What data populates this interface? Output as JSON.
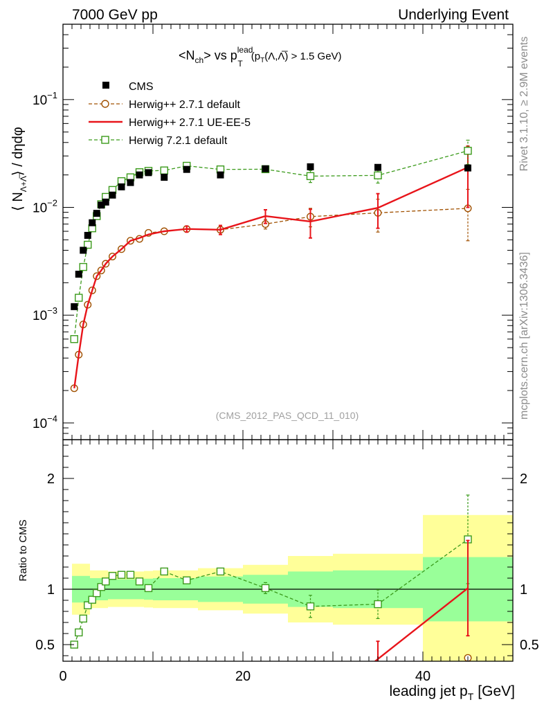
{
  "header": {
    "left": "7000 GeV pp",
    "right": "Underlying Event"
  },
  "side_labels": {
    "rivet": "Rivet 3.1.10, ≥ 2.9M events",
    "mcplots": "mcplots.cern.ch [arXiv:1306.3436]"
  },
  "chart_data": [
    {
      "type": "scatter",
      "title_parts": {
        "nch": "<N",
        "nch_sub": "ch",
        "vs": "> vs p",
        "pt_sup": "lead",
        "pt_sub": "T",
        "cond": "(p",
        "cond_sub": "T",
        "cond_rest": "(Λ,Λ̅) > 1.5 GeV)"
      },
      "watermark": "(CMS_2012_PAS_QCD_11_010)",
      "ylabel": "⟨ NΛ+Λ̅ ⟩ / dηdφ",
      "ylabel_parts": {
        "open": "⟨ N",
        "sub": "Λ+Λ̅",
        "close": "⟩ / dηdφ"
      },
      "yscale": "log",
      "ylim": [
        7e-05,
        0.5
      ],
      "xlim": [
        0,
        50
      ],
      "y_ticks": [
        {
          "value": 0.0001,
          "base": "10",
          "exp": "−4"
        },
        {
          "value": 0.001,
          "base": "10",
          "exp": "−3"
        },
        {
          "value": 0.01,
          "base": "10",
          "exp": "−2"
        },
        {
          "value": 0.1,
          "base": "10",
          "exp": "−1"
        }
      ],
      "legend_position": "top-left",
      "series": [
        {
          "name": "CMS",
          "color": "#000000",
          "marker": "filled-square",
          "x": [
            1.25,
            1.75,
            2.25,
            2.75,
            3.25,
            3.75,
            4.25,
            4.75,
            5.5,
            6.5,
            7.5,
            8.5,
            9.5,
            11.25,
            13.75,
            17.5,
            22.5,
            27.5,
            35.0,
            45.0
          ],
          "y": [
            0.0012,
            0.0024,
            0.004,
            0.0055,
            0.0072,
            0.0088,
            0.0105,
            0.0112,
            0.013,
            0.0155,
            0.017,
            0.02,
            0.021,
            0.019,
            0.0225,
            0.02,
            0.0228,
            0.0238,
            0.0235,
            0.0232
          ]
        },
        {
          "name": "Herwig++ 2.7.1 default",
          "color": "#a05000",
          "marker": "open-circle",
          "line": "dashed",
          "x": [
            1.25,
            1.75,
            2.25,
            2.75,
            3.25,
            3.75,
            4.25,
            4.75,
            5.5,
            6.5,
            7.5,
            8.5,
            9.5,
            11.25,
            13.75,
            17.5,
            22.5,
            27.5,
            35.0,
            45.0
          ],
          "y": [
            0.00021,
            0.00043,
            0.00082,
            0.00125,
            0.0017,
            0.0023,
            0.0026,
            0.003,
            0.0035,
            0.0041,
            0.0049,
            0.0051,
            0.0058,
            0.006,
            0.0063,
            0.0062,
            0.007,
            0.0082,
            0.0089,
            0.0098
          ],
          "yerr": [
            0,
            0,
            0,
            0,
            0,
            0,
            0,
            0,
            0,
            0,
            0,
            0,
            0,
            0,
            0,
            0,
            0.0007,
            0.0016,
            0.003,
            0.0049
          ]
        },
        {
          "name": "Herwig++ 2.7.1 UE-EE-5",
          "color": "#e8141a",
          "marker": "none",
          "line": "solid",
          "x": [
            1.25,
            1.75,
            2.25,
            2.75,
            3.25,
            3.75,
            4.25,
            4.75,
            5.5,
            6.5,
            7.5,
            8.5,
            9.5,
            11.25,
            13.75,
            17.5,
            22.5,
            27.5,
            35.0,
            45.0
          ],
          "y": [
            0.00021,
            0.00043,
            0.00082,
            0.00125,
            0.0017,
            0.0023,
            0.0026,
            0.003,
            0.0035,
            0.0041,
            0.0049,
            0.0052,
            0.0056,
            0.006,
            0.0063,
            0.0062,
            0.0083,
            0.0074,
            0.0099,
            0.0235
          ],
          "yerr": [
            0,
            0,
            0,
            0,
            0,
            0,
            0,
            0,
            0,
            0,
            0,
            0,
            0,
            0,
            0.0004,
            0.0006,
            0.0012,
            0.0022,
            0.0035,
            0.0135
          ]
        },
        {
          "name": "Herwig 7.2.1 default",
          "color": "#3a9a1a",
          "marker": "open-square",
          "line": "dashed",
          "x": [
            1.25,
            1.75,
            2.25,
            2.75,
            3.25,
            3.75,
            4.25,
            4.75,
            5.5,
            6.5,
            7.5,
            8.5,
            9.5,
            11.25,
            13.75,
            17.5,
            22.5,
            27.5,
            35.0,
            45.0
          ],
          "y": [
            0.0006,
            0.00145,
            0.0028,
            0.0045,
            0.0064,
            0.0083,
            0.0107,
            0.0125,
            0.0145,
            0.0175,
            0.019,
            0.0212,
            0.0218,
            0.022,
            0.0243,
            0.0225,
            0.0226,
            0.0195,
            0.0198,
            0.0335
          ],
          "yerr": [
            0,
            0,
            0,
            0,
            0,
            0,
            0,
            0,
            0,
            0,
            0,
            0,
            0,
            0,
            0,
            0,
            0.0012,
            0.0025,
            0.003,
            0.0085
          ]
        }
      ]
    },
    {
      "type": "scatter",
      "ylabel": "Ratio to CMS",
      "xlabel": "leading jet p",
      "xlabel_sub": "T",
      "xlabel_unit": "[GeV]",
      "xlim": [
        0,
        50
      ],
      "ylim": [
        0.35,
        2.35
      ],
      "x_ticks": [
        "0",
        "20",
        "40"
      ],
      "x_tick_values": [
        0,
        20,
        40
      ],
      "y_ticks": [
        "0.5",
        "1",
        "2"
      ],
      "y_tick_values": [
        0.5,
        1,
        2
      ],
      "reference_line": 1,
      "uncertainty_bands": {
        "bins": [
          [
            1,
            3
          ],
          [
            3,
            5
          ],
          [
            5,
            7
          ],
          [
            7,
            9
          ],
          [
            9,
            10
          ],
          [
            10,
            12.5
          ],
          [
            12.5,
            15
          ],
          [
            15,
            20
          ],
          [
            20,
            25
          ],
          [
            25,
            30
          ],
          [
            30,
            40
          ],
          [
            40,
            50
          ]
        ],
        "stat_half_width": [
          0.12,
          0.1,
          0.09,
          0.09,
          0.095,
          0.1,
          0.1,
          0.115,
          0.13,
          0.16,
          0.17,
          0.29
        ],
        "total_half_width": [
          0.23,
          0.17,
          0.16,
          0.16,
          0.165,
          0.17,
          0.17,
          0.19,
          0.22,
          0.3,
          0.32,
          0.67
        ],
        "stat_color": "#99ff99",
        "total_color": "#ffff99"
      },
      "series": [
        {
          "name": "Herwig 7.2.1 default",
          "color": "#3a9a1a",
          "x": [
            1.25,
            1.75,
            2.25,
            2.75,
            3.25,
            3.75,
            4.25,
            4.75,
            5.5,
            6.5,
            7.5,
            8.5,
            9.5,
            11.25,
            13.75,
            17.5,
            22.5,
            27.5,
            35.0,
            45.0
          ],
          "y": [
            0.5,
            0.61,
            0.735,
            0.855,
            0.905,
            0.965,
            1.02,
            1.07,
            1.12,
            1.13,
            1.13,
            1.07,
            1.01,
            1.16,
            1.08,
            1.16,
            1.01,
            0.845,
            0.865,
            1.45
          ],
          "yerr": [
            0,
            0,
            0,
            0,
            0,
            0,
            0,
            0,
            0,
            0,
            0,
            0,
            0,
            0,
            0,
            0,
            0.05,
            0.1,
            0.13,
            0.4
          ]
        },
        {
          "name": "Herwig++ 2.7.1 UE-EE-5",
          "color": "#e8141a",
          "x": [
            35.0,
            45.0
          ],
          "y": [
            0.37,
            1.01
          ],
          "yerr": [
            0.16,
            0.43
          ]
        },
        {
          "name": "Herwig++ 2.7.1 default",
          "color": "#a05000",
          "x": [
            45.0
          ],
          "y": [
            0.38
          ],
          "yerr": [
            0.02
          ]
        }
      ]
    }
  ]
}
